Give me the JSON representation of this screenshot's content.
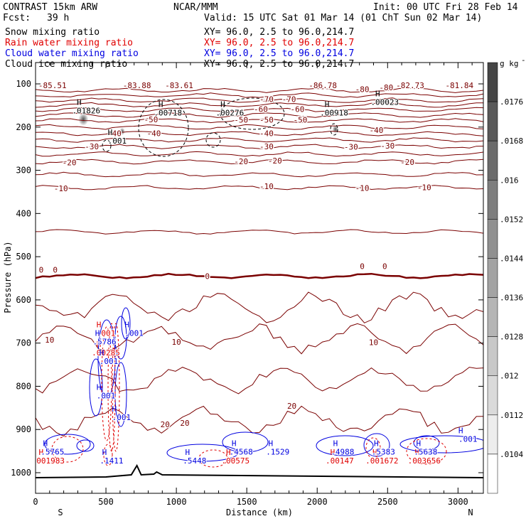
{
  "header": {
    "title": "CONTRAST 15km ARW",
    "center": "NCAR/MMM",
    "init": "Init: 00 UTC Fri 28 Feb 14",
    "fcst_label": "Fcst:",
    "fcst_value": "39 h",
    "valid": "Valid: 15 UTC Sat 01 Mar 14 (01 ChT Sun 02 Mar 14)",
    "fields": [
      {
        "name": "Snow mixing ratio",
        "xy": "XY=  96.0,  2.5 to  96.0,214.7",
        "color": "#000000"
      },
      {
        "name": "Rain water mixing ratio",
        "xy": "XY=  96.0,  2.5 to  96.0,214.7",
        "color": "#e00000"
      },
      {
        "name": "Cloud water mixing ratio",
        "xy": "XY=  96.0,  2.5 to  96.0,214.7",
        "color": "#0000e0"
      },
      {
        "name": "Cloud ice mixing ratio",
        "xy": "XY=  96.0,  2.5 to  96.0,214.7",
        "color": "#000000"
      }
    ]
  },
  "colors": {
    "temperature": "#7a0000",
    "zero_isotherm": "#7a0000",
    "rain": "#e00000",
    "cloud_water": "#0000e0",
    "ice": "#000000",
    "terrain": "#000000"
  },
  "chart_data": {
    "type": "contour",
    "xlabel": "Distance (km)",
    "ylabel": "Pressure (hPa)",
    "xlim": [
      0,
      3180
    ],
    "ylim": [
      1050,
      50
    ],
    "x_ticks": [
      0,
      500,
      1000,
      1500,
      2000,
      2500,
      3000
    ],
    "x_tick_labels": [
      "0",
      "500",
      "1000",
      "1500",
      "2000",
      "2500",
      "3000"
    ],
    "y_ticks": [
      100,
      200,
      300,
      400,
      500,
      600,
      700,
      800,
      900,
      1000
    ],
    "y_tick_labels": [
      "100",
      "200",
      "300",
      "400",
      "500",
      "600",
      "700",
      "800",
      "900",
      "1000"
    ],
    "x_ends": {
      "left": "S",
      "right": "N"
    },
    "colorbar": {
      "unit": "g kg",
      "exponent": "-1",
      "labels": [
        ".0176",
        ".0168",
        ".016",
        ".0152",
        ".0144",
        ".0136",
        ".0128",
        ".012",
        ".0112",
        ".0104"
      ],
      "values": [
        0.0176,
        0.0168,
        0.016,
        0.0152,
        0.0144,
        0.0136,
        0.0128,
        0.012,
        0.0112,
        0.0104
      ]
    },
    "isotherms": [
      {
        "t": -80,
        "p": 115
      },
      {
        "t": -70,
        "p": 138
      },
      {
        "t": -60,
        "p": 160
      },
      {
        "t": -50,
        "p": 185
      },
      {
        "t": -40,
        "p": 215
      },
      {
        "t": -30,
        "p": 245
      },
      {
        "t": -20,
        "p": 280
      },
      {
        "t": -10,
        "p": 340
      },
      {
        "t": 0,
        "p": 545
      },
      {
        "t": 10,
        "p": 690
      },
      {
        "t": 20,
        "p": 880
      }
    ],
    "temperature_labels": [
      {
        "text": "-85.51",
        "x": 120,
        "p": 103
      },
      {
        "text": "-83.88",
        "x": 720,
        "p": 103
      },
      {
        "text": "-83.61",
        "x": 1020,
        "p": 103
      },
      {
        "text": "-86.78",
        "x": 2040,
        "p": 103
      },
      {
        "text": "-82.73",
        "x": 2660,
        "p": 103
      },
      {
        "text": "-81.84",
        "x": 3010,
        "p": 103
      },
      {
        "text": "-80",
        "x": 2320,
        "p": 112
      },
      {
        "text": "-80",
        "x": 2490,
        "p": 108
      },
      {
        "text": "-70",
        "x": 1640,
        "p": 135
      },
      {
        "text": "-70",
        "x": 1800,
        "p": 135
      },
      {
        "text": "-60",
        "x": 1600,
        "p": 158
      },
      {
        "text": "-60",
        "x": 1860,
        "p": 158
      },
      {
        "text": "-50",
        "x": 820,
        "p": 182
      },
      {
        "text": "-50",
        "x": 1460,
        "p": 183
      },
      {
        "text": "-50",
        "x": 1640,
        "p": 183
      },
      {
        "text": "-50",
        "x": 1880,
        "p": 183
      },
      {
        "text": "-40",
        "x": 560,
        "p": 214
      },
      {
        "text": "-40",
        "x": 840,
        "p": 214
      },
      {
        "text": "-40",
        "x": 1640,
        "p": 214
      },
      {
        "text": "-40",
        "x": 2420,
        "p": 207
      },
      {
        "text": "-30",
        "x": 400,
        "p": 245
      },
      {
        "text": "-30",
        "x": 1640,
        "p": 245
      },
      {
        "text": "-30",
        "x": 2240,
        "p": 246
      },
      {
        "text": "-30",
        "x": 2500,
        "p": 243
      },
      {
        "text": "-20",
        "x": 240,
        "p": 282
      },
      {
        "text": "-20",
        "x": 1460,
        "p": 279
      },
      {
        "text": "-20",
        "x": 1700,
        "p": 278
      },
      {
        "text": "-20",
        "x": 2640,
        "p": 281
      },
      {
        "text": "-10",
        "x": 180,
        "p": 342
      },
      {
        "text": "-10",
        "x": 1640,
        "p": 337
      },
      {
        "text": "-10",
        "x": 2320,
        "p": 341
      },
      {
        "text": "-10",
        "x": 2760,
        "p": 339
      },
      {
        "text": "0",
        "x": 40,
        "p": 530
      },
      {
        "text": "0",
        "x": 140,
        "p": 530
      },
      {
        "text": "0",
        "x": 1220,
        "p": 545
      },
      {
        "text": "0",
        "x": 2320,
        "p": 522
      },
      {
        "text": "0",
        "x": 2480,
        "p": 522
      },
      {
        "text": "10",
        "x": 100,
        "p": 692
      },
      {
        "text": "10",
        "x": 1000,
        "p": 697
      },
      {
        "text": "10",
        "x": 2400,
        "p": 698
      },
      {
        "text": "20",
        "x": 920,
        "p": 888
      },
      {
        "text": "20",
        "x": 1060,
        "p": 885
      },
      {
        "text": "20",
        "x": 1820,
        "p": 845
      }
    ],
    "maxima": {
      "snow": [
        {
          "value": ".01826",
          "x": 360,
          "p": 165
        },
        {
          "value": ".001",
          "x": 580,
          "p": 235
        },
        {
          "value": ".00718",
          "x": 940,
          "p": 170
        },
        {
          "value": ".00276",
          "x": 1380,
          "p": 170
        },
        {
          "value": ".00918",
          "x": 2120,
          "p": 170
        },
        {
          "value": ".00023",
          "x": 2480,
          "p": 145
        }
      ],
      "rain": [
        {
          "value": ".001",
          "x": 500,
          "p": 680
        },
        {
          "value": ".00285",
          "x": 500,
          "p": 725
        },
        {
          "value": ".001983",
          "x": 90,
          "p": 975
        },
        {
          "value": ".00575",
          "x": 1420,
          "p": 975
        },
        {
          "value": ".00147",
          "x": 2160,
          "p": 975
        },
        {
          "value": ".001672",
          "x": 2460,
          "p": 975
        },
        {
          "value": ".003656",
          "x": 2760,
          "p": 975
        }
      ],
      "cloud": [
        {
          "value": ".5786",
          "x": 490,
          "p": 700
        },
        {
          "value": ".001",
          "x": 700,
          "p": 680
        },
        {
          "value": ".001",
          "x": 520,
          "p": 745
        },
        {
          "value": ".001",
          "x": 500,
          "p": 825
        },
        {
          "value": ".001",
          "x": 610,
          "p": 875
        },
        {
          "value": ".5765",
          "x": 120,
          "p": 955
        },
        {
          "value": ".1411",
          "x": 540,
          "p": 975
        },
        {
          "value": ".5448",
          "x": 1130,
          "p": 975
        },
        {
          "value": ".4568",
          "x": 1460,
          "p": 955
        },
        {
          "value": ".1529",
          "x": 1720,
          "p": 955
        },
        {
          "value": ".4988",
          "x": 2180,
          "p": 955
        },
        {
          "value": ".5383",
          "x": 2470,
          "p": 955
        },
        {
          "value": ".5638",
          "x": 2770,
          "p": 955
        },
        {
          "value": ".001",
          "x": 3070,
          "p": 925
        }
      ]
    },
    "snow_blobs": [
      {
        "x": 340,
        "p": 182,
        "w": 70,
        "level": 0.0176
      },
      {
        "x": 615,
        "p": 210,
        "w": 40,
        "level": 0.012
      },
      {
        "x": 2130,
        "p": 205,
        "w": 45,
        "level": 0.016
      }
    ]
  }
}
